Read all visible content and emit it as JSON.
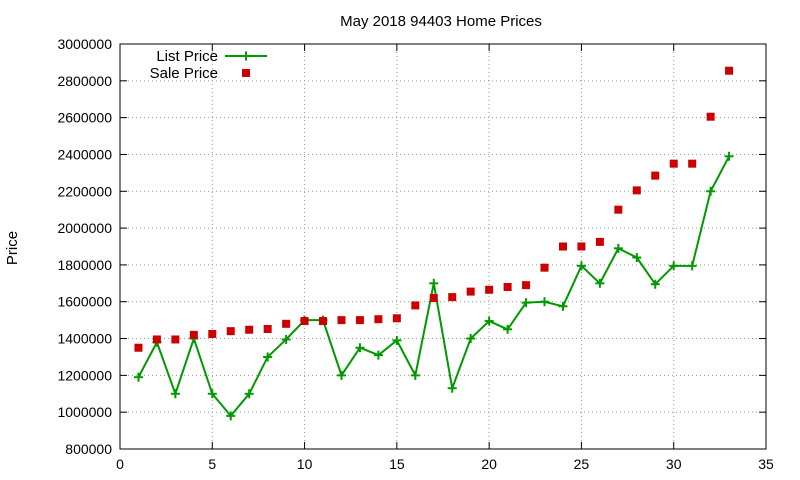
{
  "chart_data": {
    "type": "line",
    "title": "May 2018 94403 Home Prices",
    "xlabel": "",
    "ylabel": "Price",
    "xlim": [
      0,
      35
    ],
    "ylim": [
      800000,
      3000000
    ],
    "xticks": [
      0,
      5,
      10,
      15,
      20,
      25,
      30,
      35
    ],
    "yticks": [
      800000,
      1000000,
      1200000,
      1400000,
      1600000,
      1800000,
      2000000,
      2200000,
      2400000,
      2600000,
      2800000,
      3000000
    ],
    "grid": true,
    "legend_position": "top-left",
    "series": [
      {
        "name": "List Price",
        "style": "line+cross",
        "color": "#009900",
        "x": [
          1,
          2,
          3,
          4,
          5,
          6,
          7,
          8,
          9,
          10,
          11,
          12,
          13,
          14,
          15,
          16,
          17,
          18,
          19,
          20,
          21,
          22,
          23,
          24,
          25,
          26,
          27,
          28,
          29,
          30,
          31,
          32,
          33
        ],
        "values": [
          1190000,
          1380000,
          1100000,
          1400000,
          1100000,
          980000,
          1100000,
          1300000,
          1395000,
          1500000,
          1500000,
          1200000,
          1350000,
          1310000,
          1390000,
          1200000,
          1700000,
          1130000,
          1400000,
          1495000,
          1450000,
          1595000,
          1600000,
          1575000,
          1795000,
          1700000,
          1890000,
          1840000,
          1695000,
          1795000,
          1795000,
          2200000,
          2390000
        ]
      },
      {
        "name": "Sale Price",
        "style": "square",
        "color": "#cc0000",
        "x": [
          1,
          2,
          3,
          4,
          5,
          6,
          7,
          8,
          9,
          10,
          11,
          12,
          13,
          14,
          15,
          16,
          17,
          18,
          19,
          20,
          21,
          22,
          23,
          24,
          25,
          26,
          27,
          28,
          29,
          30,
          31,
          32,
          33
        ],
        "values": [
          1350000,
          1395000,
          1395000,
          1420000,
          1425000,
          1440000,
          1448000,
          1452000,
          1480000,
          1495000,
          1495000,
          1500000,
          1500000,
          1505000,
          1510000,
          1580000,
          1620000,
          1625000,
          1655000,
          1665000,
          1680000,
          1690000,
          1785000,
          1900000,
          1900000,
          1925000,
          2100000,
          2205000,
          2285000,
          2350000,
          2350000,
          2605000,
          2855000
        ]
      }
    ]
  }
}
